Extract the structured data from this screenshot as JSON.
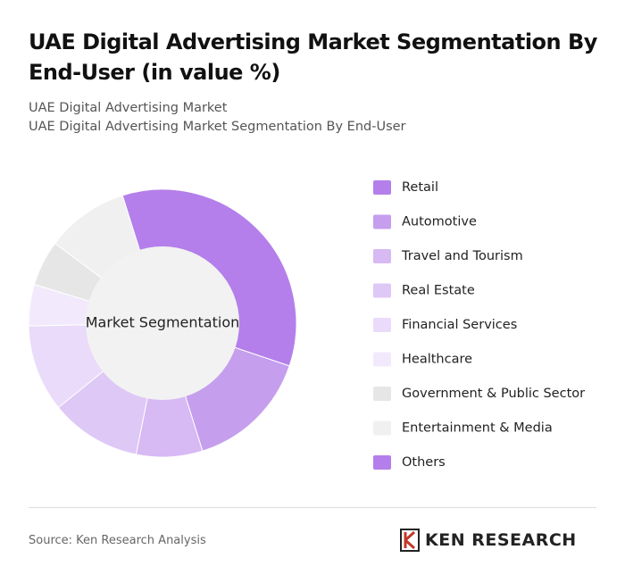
{
  "chart_data": {
    "type": "donut",
    "title": "UAE Digital Advertising Market Segmentation By End-User (in value %)",
    "subtitle": "UAE Digital Advertising Market",
    "subtitle2": "UAE Digital Advertising Market Segmentation By End-User",
    "center_label": "Market Segmentation",
    "categories": [
      "Retail",
      "Automotive",
      "Travel and Tourism",
      "Real Estate",
      "Financial Services",
      "Healthcare",
      "Government & Public Sector",
      "Entertainment & Media",
      "Others"
    ],
    "values": [
      35,
      15,
      8,
      11,
      10.5,
      5,
      5.5,
      10,
      0
    ],
    "colors": [
      "#b47fea",
      "#c59eee",
      "#d7b9f4",
      "#dec8f6",
      "#e9dbf9",
      "#f2eafc",
      "#e6e6e6",
      "#f0f0f0",
      "#b47fea"
    ]
  },
  "source": "Source: Ken Research Analysis",
  "brand": "KEN RESEARCH"
}
